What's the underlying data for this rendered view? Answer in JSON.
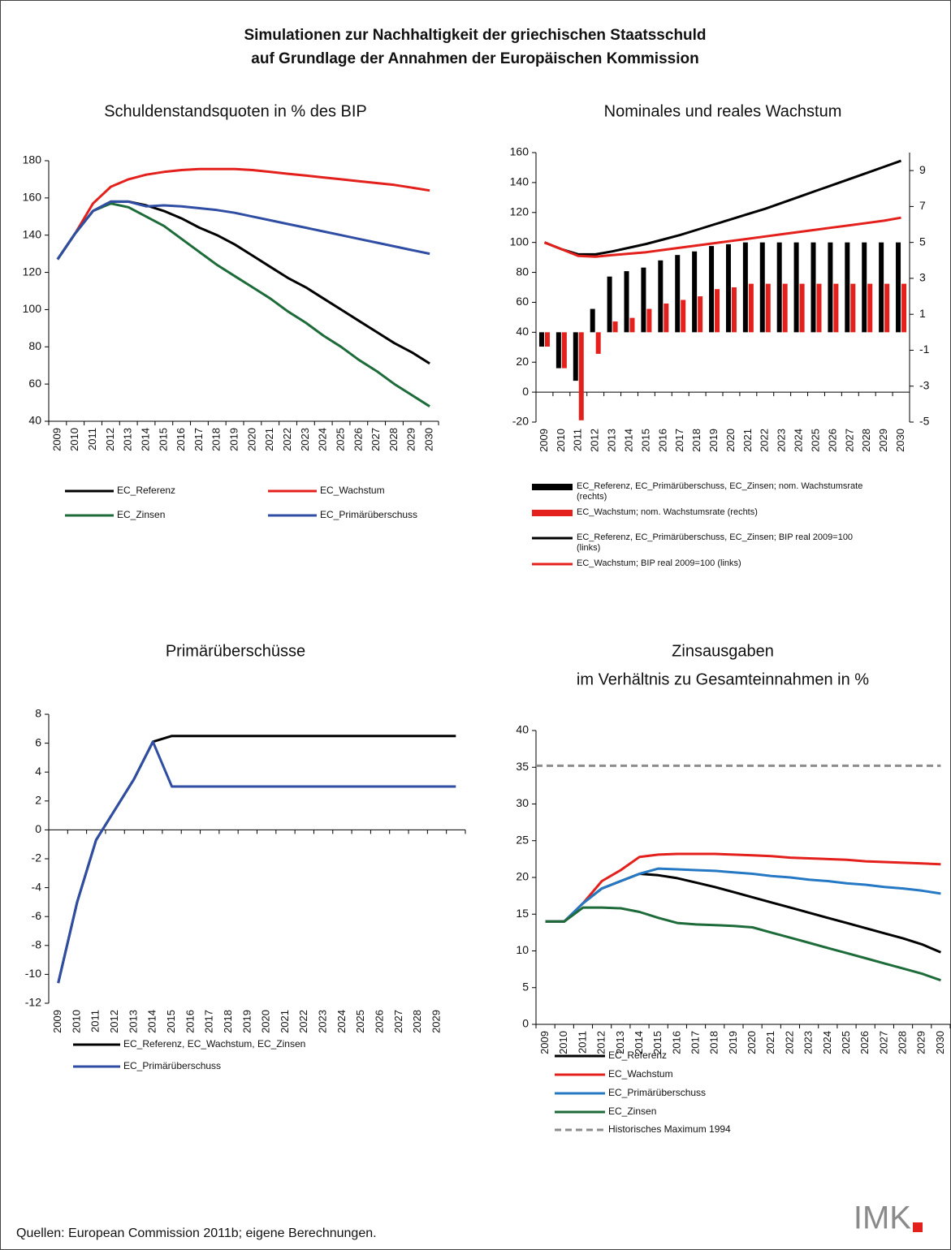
{
  "title": [
    "Simulationen zur Nachhaltigkeit der griechischen Staatsschuld",
    "auf Grundlage der Annahmen der Europäischen Kommission"
  ],
  "source": "Quellen: European Commission 2011b; eigene Berechnungen.",
  "logo": "IMK",
  "chart_data": [
    {
      "type": "line",
      "title": "Schuldenstandsquoten in % des BIP",
      "categories": [
        "2009",
        "2010",
        "2011",
        "2012",
        "2013",
        "2014",
        "2015",
        "2016",
        "2017",
        "2018",
        "2019",
        "2020",
        "2021",
        "2022",
        "2023",
        "2024",
        "2025",
        "2026",
        "2027",
        "2028",
        "2029",
        "2030"
      ],
      "ylim": [
        40,
        180
      ],
      "yticks": [
        40,
        60,
        80,
        100,
        120,
        140,
        160,
        180
      ],
      "series": [
        {
          "name": "EC_Referenz",
          "color": "#000000",
          "values": [
            127,
            141,
            153,
            158,
            158,
            156,
            153,
            149,
            144,
            140,
            135,
            129,
            123,
            117,
            112,
            106,
            100,
            94,
            88,
            82,
            77,
            71
          ]
        },
        {
          "name": "EC_Wachstum",
          "color": "#e3201b",
          "values": [
            127,
            141,
            157,
            166,
            170,
            172.5,
            174,
            175,
            175.5,
            175.5,
            175.5,
            175,
            174,
            173,
            172,
            171,
            170,
            169,
            168,
            167,
            165.5,
            164
          ]
        },
        {
          "name": "EC_Zinsen",
          "color": "#1e6b3a",
          "values": [
            127,
            141,
            153,
            157,
            155,
            150,
            145,
            138,
            131,
            124,
            118,
            112,
            106,
            99,
            93,
            86,
            80,
            73,
            67,
            60,
            54,
            48
          ]
        },
        {
          "name": "EC_Primärüberschuss",
          "color": "#2f4ea3",
          "values": [
            127,
            141,
            153,
            158,
            158,
            155.5,
            156,
            155.5,
            154.5,
            153.5,
            152,
            150,
            148,
            146,
            144,
            142,
            140,
            138,
            136,
            134,
            132,
            130
          ]
        }
      ]
    },
    {
      "type": "combo",
      "title": "Nominales und reales Wachstum",
      "categories": [
        "2009",
        "2010",
        "2011",
        "2012",
        "2013",
        "2014",
        "2015",
        "2016",
        "2017",
        "2018",
        "2019",
        "2020",
        "2021",
        "2022",
        "2023",
        "2024",
        "2025",
        "2026",
        "2027",
        "2028",
        "2029",
        "2030"
      ],
      "ylim": [
        -20,
        160
      ],
      "yticks": [
        -20,
        0,
        20,
        40,
        60,
        80,
        100,
        120,
        140,
        160
      ],
      "y2lim": [
        -5,
        10
      ],
      "y2ticks": [
        -5,
        -3,
        -1,
        1,
        3,
        5,
        7,
        9
      ],
      "series": [
        {
          "name": "EC_Referenz, EC_Primärüberschuss, EC_Zinsen; nom. Wachstumsrate (rechts)",
          "type": "bar",
          "axis": "y2",
          "color": "#000000",
          "values": [
            -0.8,
            -2.0,
            -2.7,
            1.3,
            3.1,
            3.4,
            3.6,
            4.0,
            4.3,
            4.5,
            4.8,
            4.9,
            5.0,
            5.0,
            5.0,
            5.0,
            5.0,
            5.0,
            5.0,
            5.0,
            5.0,
            5.0
          ]
        },
        {
          "name": "EC_Wachstum; nom. Wachstumsrate (rechts)",
          "type": "bar",
          "axis": "y2",
          "color": "#e3201b",
          "values": [
            -0.8,
            -2.0,
            -4.9,
            -1.2,
            0.6,
            0.8,
            1.3,
            1.6,
            1.8,
            2.0,
            2.4,
            2.5,
            2.7,
            2.7,
            2.7,
            2.7,
            2.7,
            2.7,
            2.7,
            2.7,
            2.7,
            2.7
          ]
        },
        {
          "name": "EC_Referenz, EC_Primärüberschuss, EC_Zinsen; BIP real 2009=100 (links)",
          "type": "line",
          "color": "#000000",
          "values": [
            100,
            95.5,
            92,
            92,
            94,
            96.5,
            99,
            102,
            105,
            108.5,
            112,
            115.5,
            119,
            122.5,
            126.5,
            130.5,
            134.5,
            138.5,
            142.5,
            146.5,
            150.5,
            154.5
          ]
        },
        {
          "name": "EC_Wachstum; BIP real 2009=100 (links)",
          "type": "line",
          "color": "#e3201b",
          "values": [
            100,
            95.5,
            91,
            90.5,
            91.5,
            92.5,
            93.5,
            95,
            96.5,
            98,
            99.5,
            101,
            102.5,
            104,
            105.5,
            107,
            108.5,
            110,
            111.5,
            113,
            114.5,
            116.5
          ]
        }
      ]
    },
    {
      "type": "line",
      "title": "Primärüberschüsse",
      "categories": [
        "2009",
        "2010",
        "2011",
        "2012",
        "2013",
        "2014",
        "2015",
        "2016",
        "2017",
        "2018",
        "2019",
        "2020",
        "2021",
        "2022",
        "2023",
        "2024",
        "2025",
        "2026",
        "2027",
        "2028",
        "2029",
        null
      ],
      "ylim": [
        -12,
        8
      ],
      "yticks": [
        -12,
        -10,
        -8,
        -6,
        -4,
        -2,
        0,
        2,
        4,
        6,
        8
      ],
      "series": [
        {
          "name": "EC_Referenz, EC_Wachstum, EC_Zinsen",
          "color": "#000000",
          "values": [
            -10.6,
            -5,
            -0.7,
            1.4,
            3.5,
            6.1,
            6.5,
            6.5,
            6.5,
            6.5,
            6.5,
            6.5,
            6.5,
            6.5,
            6.5,
            6.5,
            6.5,
            6.5,
            6.5,
            6.5,
            6.5,
            6.5
          ]
        },
        {
          "name": "EC_Primärüberschuss",
          "color": "#2f4ea3",
          "values": [
            -10.6,
            -5,
            -0.7,
            1.4,
            3.5,
            6.1,
            3,
            3,
            3,
            3,
            3,
            3,
            3,
            3,
            3,
            3,
            3,
            3,
            3,
            3,
            3,
            3
          ]
        }
      ]
    },
    {
      "type": "line",
      "title": "Zinsausgaben",
      "subtitle": "im Verhältnis zu Gesamteinnahmen in %",
      "categories": [
        "2009",
        "2010",
        "2011",
        "2012",
        "2013",
        "2014",
        "2015",
        "2016",
        "2017",
        "2018",
        "2019",
        "2020",
        "2021",
        "2022",
        "2023",
        "2024",
        "2025",
        "2026",
        "2027",
        "2028",
        "2029",
        "2030"
      ],
      "ylim": [
        0,
        40
      ],
      "yticks": [
        0,
        5,
        10,
        15,
        20,
        25,
        30,
        35,
        40
      ],
      "series": [
        {
          "name": "EC_Referenz",
          "color": "#000000",
          "values": [
            14,
            14,
            16.5,
            18.5,
            19.5,
            20.5,
            20.3,
            19.9,
            19.3,
            18.7,
            18,
            17.3,
            16.6,
            15.9,
            15.2,
            14.5,
            13.8,
            13.1,
            12.4,
            11.7,
            10.9,
            9.8
          ]
        },
        {
          "name": "EC_Wachstum",
          "color": "#e3201b",
          "values": [
            14,
            14,
            16.5,
            19.5,
            21,
            22.8,
            23.1,
            23.2,
            23.2,
            23.2,
            23.1,
            23,
            22.9,
            22.7,
            22.6,
            22.5,
            22.4,
            22.2,
            22.1,
            22,
            21.9,
            21.8
          ]
        },
        {
          "name": "EC_Primärüberschuss",
          "color": "#2478c4",
          "values": [
            14,
            14,
            16.5,
            18.5,
            19.5,
            20.5,
            21.2,
            21.1,
            21,
            20.9,
            20.7,
            20.5,
            20.2,
            20,
            19.7,
            19.5,
            19.2,
            19,
            18.7,
            18.5,
            18.2,
            17.8
          ]
        },
        {
          "name": "EC_Zinsen",
          "color": "#1e6b3a",
          "values": [
            14,
            14,
            15.9,
            15.9,
            15.8,
            15.3,
            14.5,
            13.8,
            13.6,
            13.5,
            13.4,
            13.2,
            12.5,
            11.8,
            11.1,
            10.4,
            9.7,
            9,
            8.3,
            7.6,
            6.9,
            6
          ]
        },
        {
          "name": "Historisches Maximum 1994",
          "color": "#8c8c8c",
          "dash": true,
          "values": [
            35.2,
            35.2,
            35.2,
            35.2,
            35.2,
            35.2,
            35.2,
            35.2,
            35.2,
            35.2,
            35.2,
            35.2,
            35.2,
            35.2,
            35.2,
            35.2,
            35.2,
            35.2,
            35.2,
            35.2,
            35.2,
            35.2
          ]
        }
      ]
    }
  ]
}
